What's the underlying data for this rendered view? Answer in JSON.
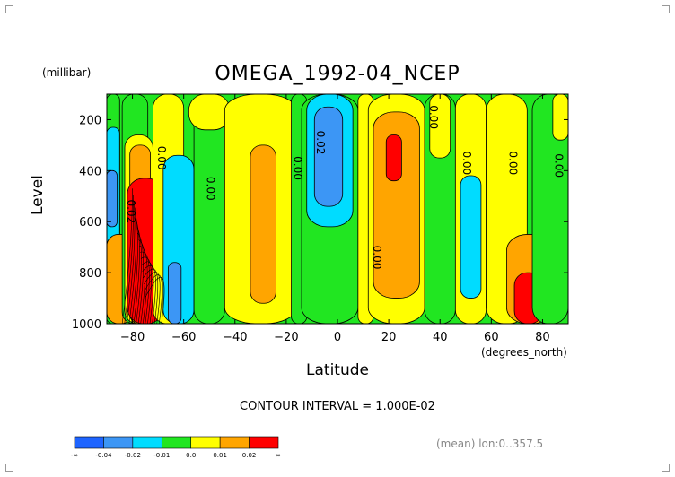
{
  "title": "OMEGA_1992-04_NCEP",
  "unit_label": "(millibar)",
  "x_unit_label": "(degrees_north)",
  "contour_note": "CONTOUR INTERVAL = 1.000E-02",
  "mean_note": "(mean) lon:0..357.5",
  "colors": {
    "dark_blue": "#1e64ff",
    "blue": "#3c96f5",
    "light_blue": "#00dcff",
    "cyan_light": "#00ffff",
    "green": "#21e621",
    "yellow": "#ffff00",
    "orange": "#ffa500",
    "red": "#ff0000"
  },
  "colorbar": {
    "labels": [
      "-∞",
      "-0.04",
      "-0.02",
      "-0.01",
      "0.0",
      "0.01",
      "0.02",
      "∞"
    ]
  },
  "chart_data": {
    "type": "heatmap",
    "title": "OMEGA_1992-04_NCEP",
    "xlabel": "Latitude",
    "ylabel": "Level",
    "x_unit": "(degrees_north)",
    "y_unit": "(millibar)",
    "xlim": [
      -90,
      90
    ],
    "ylim": [
      1000,
      100
    ],
    "x_ticks": [
      -80,
      -60,
      -40,
      -20,
      0,
      20,
      40,
      60,
      80
    ],
    "x_tick_labels": [
      "-80",
      "-60",
      "-40",
      "-20",
      "0",
      "20",
      "40",
      "60",
      "80"
    ],
    "y_ticks": [
      200,
      400,
      600,
      800,
      1000
    ],
    "y_tick_labels": [
      "200",
      "400",
      "600",
      "800",
      "1000"
    ],
    "contour_interval": 0.01,
    "contour_labels": [
      {
        "text": "0.00",
        "lat": -70,
        "lev": 350
      },
      {
        "text": "0.00",
        "lat": -51,
        "lev": 470
      },
      {
        "text": "0.00",
        "lat": -17,
        "lev": 390
      },
      {
        "text": "0.02",
        "lat": -8,
        "lev": 290
      },
      {
        "text": "0.00",
        "lat": 14,
        "lev": 740
      },
      {
        "text": "0.00",
        "lat": 36,
        "lev": 190
      },
      {
        "text": "0.00",
        "lat": 49,
        "lev": 370
      },
      {
        "text": "0.00",
        "lat": 67,
        "lev": 370
      },
      {
        "text": "0.00",
        "lat": 85,
        "lev": 380
      },
      {
        "text": "0.02",
        "lat": -82,
        "lev": 560
      }
    ],
    "bands": [
      {
        "lat": [
          -90,
          -85
        ],
        "lev": [
          100,
          1000
        ],
        "class": "green"
      },
      {
        "lat": [
          -90,
          -85
        ],
        "lev": [
          230,
          730
        ],
        "class": "light_blue"
      },
      {
        "lat": [
          -90,
          -86
        ],
        "lev": [
          400,
          620
        ],
        "class": "blue"
      },
      {
        "lat": [
          -90,
          -80
        ],
        "lev": [
          650,
          1000
        ],
        "class": "orange"
      },
      {
        "lat": [
          -84,
          -74
        ],
        "lev": [
          100,
          1000
        ],
        "class": "green"
      },
      {
        "lat": [
          -83,
          -72
        ],
        "lev": [
          260,
          1000
        ],
        "class": "yellow"
      },
      {
        "lat": [
          -81,
          -73
        ],
        "lev": [
          300,
          1000
        ],
        "class": "orange"
      },
      {
        "lat": [
          -82,
          -68
        ],
        "lev": [
          430,
          1000
        ],
        "class": "red"
      },
      {
        "lat": [
          -72,
          -60
        ],
        "lev": [
          100,
          1000
        ],
        "class": "yellow"
      },
      {
        "lat": [
          -68,
          -56
        ],
        "lev": [
          340,
          1000
        ],
        "class": "light_blue"
      },
      {
        "lat": [
          -66,
          -61
        ],
        "lev": [
          760,
          1000
        ],
        "class": "blue"
      },
      {
        "lat": [
          -56,
          -44
        ],
        "lev": [
          100,
          1000
        ],
        "class": "green"
      },
      {
        "lat": [
          -58,
          -42
        ],
        "lev": [
          100,
          240
        ],
        "class": "yellow"
      },
      {
        "lat": [
          -44,
          -16
        ],
        "lev": [
          100,
          1000
        ],
        "class": "yellow"
      },
      {
        "lat": [
          -34,
          -24
        ],
        "lev": [
          300,
          920
        ],
        "class": "orange"
      },
      {
        "lat": [
          -18,
          -12
        ],
        "lev": [
          100,
          1000
        ],
        "class": "green"
      },
      {
        "lat": [
          -14,
          8
        ],
        "lev": [
          100,
          1000
        ],
        "class": "green"
      },
      {
        "lat": [
          -12,
          6
        ],
        "lev": [
          100,
          620
        ],
        "class": "light_blue"
      },
      {
        "lat": [
          -9,
          2
        ],
        "lev": [
          150,
          540
        ],
        "class": "blue"
      },
      {
        "lat": [
          8,
          14
        ],
        "lev": [
          100,
          1000
        ],
        "class": "yellow"
      },
      {
        "lat": [
          12,
          34
        ],
        "lev": [
          100,
          1000
        ],
        "class": "yellow"
      },
      {
        "lat": [
          14,
          32
        ],
        "lev": [
          170,
          900
        ],
        "class": "orange"
      },
      {
        "lat": [
          19,
          25
        ],
        "lev": [
          260,
          440
        ],
        "class": "red"
      },
      {
        "lat": [
          34,
          46
        ],
        "lev": [
          100,
          1000
        ],
        "class": "green"
      },
      {
        "lat": [
          36,
          44
        ],
        "lev": [
          100,
          350
        ],
        "class": "yellow"
      },
      {
        "lat": [
          46,
          58
        ],
        "lev": [
          100,
          1000
        ],
        "class": "yellow"
      },
      {
        "lat": [
          48,
          56
        ],
        "lev": [
          420,
          900
        ],
        "class": "light_blue"
      },
      {
        "lat": [
          58,
          74
        ],
        "lev": [
          100,
          1000
        ],
        "class": "yellow"
      },
      {
        "lat": [
          66,
          84
        ],
        "lev": [
          650,
          1000
        ],
        "class": "orange"
      },
      {
        "lat": [
          69,
          80
        ],
        "lev": [
          800,
          1000
        ],
        "class": "red"
      },
      {
        "lat": [
          76,
          90
        ],
        "lev": [
          100,
          1000
        ],
        "class": "green"
      },
      {
        "lat": [
          84,
          90
        ],
        "lev": [
          100,
          280
        ],
        "class": "yellow"
      }
    ]
  }
}
